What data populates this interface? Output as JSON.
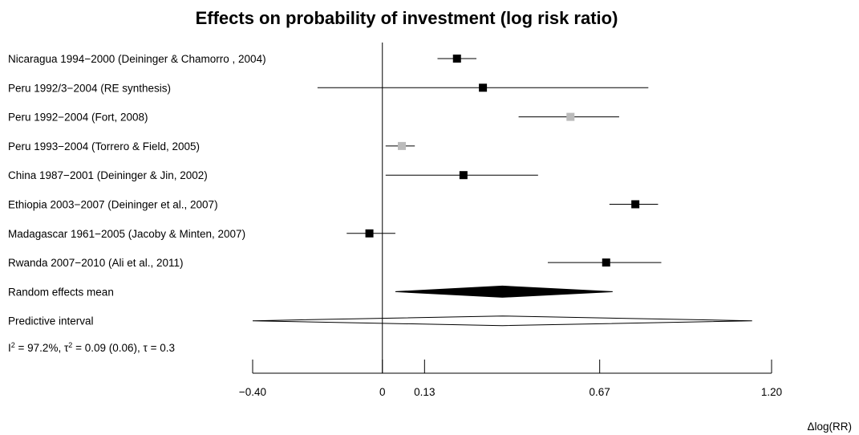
{
  "chart_data": {
    "type": "forest",
    "title": "Effects on probability of investment (log risk ratio)",
    "xlabel": "Δlog(RR)",
    "xlim": [
      -0.4,
      1.2
    ],
    "x_ticks": [
      -0.4,
      0,
      0.13,
      0.67,
      1.2
    ],
    "x_tick_labels": [
      "−0.40",
      "0",
      "0.13",
      "0.67",
      "1.20"
    ],
    "reference_line": 0,
    "studies": [
      {
        "label": "Nicaragua 1994−2000 (Deininger & Chamorro , 2004)",
        "estimate": 0.23,
        "lower": 0.17,
        "upper": 0.29,
        "color": "#000000"
      },
      {
        "label": "Peru 1992/3−2004 (RE synthesis)",
        "estimate": 0.31,
        "lower": -0.2,
        "upper": 0.82,
        "color": "#000000"
      },
      {
        "label": "Peru 1992−2004 (Fort, 2008)",
        "estimate": 0.58,
        "lower": 0.42,
        "upper": 0.73,
        "color": "#bbbbbb"
      },
      {
        "label": "Peru 1993−2004 (Torrero & Field, 2005)",
        "estimate": 0.06,
        "lower": 0.01,
        "upper": 0.1,
        "color": "#bbbbbb"
      },
      {
        "label": "China 1987−2001 (Deininger & Jin, 2002)",
        "estimate": 0.25,
        "lower": 0.01,
        "upper": 0.48,
        "color": "#000000"
      },
      {
        "label": "Ethiopia 2003−2007 (Deininger et al., 2007)",
        "estimate": 0.78,
        "lower": 0.7,
        "upper": 0.85,
        "color": "#000000"
      },
      {
        "label": "Madagascar 1961−2005 (Jacoby & Minten, 2007)",
        "estimate": -0.04,
        "lower": -0.11,
        "upper": 0.04,
        "color": "#000000"
      },
      {
        "label": "Rwanda 2007−2010 (Ali et al., 2011)",
        "estimate": 0.69,
        "lower": 0.51,
        "upper": 0.86,
        "color": "#000000"
      }
    ],
    "summary": {
      "label": "Random effects mean",
      "estimate": 0.37,
      "lower": 0.04,
      "upper": 0.71,
      "color": "#000000"
    },
    "predictive_interval": {
      "label": "Predictive interval",
      "estimate": 0.37,
      "lower": -0.4,
      "upper": 1.14,
      "color": "#ffffff"
    },
    "heterogeneity": {
      "i_prefix": "I",
      "i_sup": "2",
      "i_value": " = 97.2%, ",
      "tau_prefix": "τ",
      "tau_sup": "2",
      "tau_value": " = 0.09 (0.06), ",
      "tau_plain": "τ = 0.3"
    }
  }
}
